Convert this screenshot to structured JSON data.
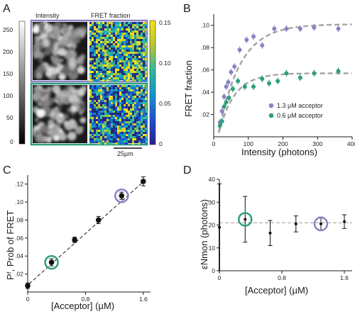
{
  "panels": {
    "A": {
      "letter": "A",
      "col_titles": [
        "Intensity",
        "FRET fraction"
      ],
      "gray_ticks": [
        "250",
        "200",
        "150",
        "100",
        "50",
        "0"
      ],
      "color_ticks": [
        "0.15",
        "0.10",
        "0.05",
        "0"
      ],
      "scalebar": "25µm",
      "frame_colors": {
        "top": "#8a83c4",
        "bottom": "#2f9e7e"
      }
    },
    "B": {
      "letter": "B"
    },
    "C": {
      "letter": "C"
    },
    "D": {
      "letter": "D"
    }
  },
  "chart_data": [
    {
      "panel": "B",
      "type": "scatter",
      "xlabel": "Intensity (photons)",
      "ylabel": "FRET fraction",
      "xlim": [
        0,
        400
      ],
      "ylim": [
        0,
        0.11
      ],
      "xticks": [
        "0",
        "100",
        "200",
        "300",
        "400"
      ],
      "yticks": [
        ".02",
        ".04",
        ".06",
        ".08",
        ".10"
      ],
      "legend_position": "bottom-right",
      "series": [
        {
          "name": "1.3 μM acceptor",
          "color": "#8a83c4",
          "x": [
            18,
            24,
            30,
            36,
            42,
            50,
            60,
            75,
            95,
            115,
            140,
            175,
            210,
            250,
            290,
            360
          ],
          "y": [
            0.013,
            0.023,
            0.036,
            0.045,
            0.049,
            0.058,
            0.063,
            0.078,
            0.087,
            0.09,
            0.082,
            0.097,
            0.097,
            0.097,
            0.098,
            0.097
          ],
          "fit": {
            "type": "saturation",
            "max": 0.101,
            "k": 0.016
          }
        },
        {
          "name": "0.6 μM acceptor",
          "color": "#2f9e7e",
          "x": [
            18,
            24,
            30,
            36,
            44,
            55,
            70,
            90,
            115,
            140,
            160,
            185,
            210,
            250,
            290,
            360
          ],
          "y": [
            0.01,
            0.014,
            0.027,
            0.031,
            0.035,
            0.043,
            0.05,
            0.045,
            0.045,
            0.052,
            0.048,
            0.05,
            0.057,
            0.053,
            0.057,
            0.059
          ],
          "fit": {
            "type": "saturation",
            "max": 0.057,
            "k": 0.022
          }
        }
      ]
    },
    {
      "panel": "C",
      "type": "scatter",
      "xlabel": "[Acceptor] (µM)",
      "ylabel": "Pᶠ, Prob of FRET",
      "xlim": [
        0,
        1.7
      ],
      "ylim": [
        0,
        0.13
      ],
      "xticks": [
        "0",
        "0.8",
        "1.6"
      ],
      "yticks": [
        ".02",
        ".04",
        ".06",
        ".08",
        ".10",
        ".12"
      ],
      "x": [
        0.0,
        0.33,
        0.65,
        0.98,
        1.3,
        1.6
      ],
      "y": [
        0.007,
        0.033,
        0.058,
        0.08,
        0.107,
        0.123
      ],
      "err": [
        0.003,
        0.004,
        0.003,
        0.004,
        0.004,
        0.005
      ],
      "highlighted": [
        1,
        4
      ]
    },
    {
      "panel": "D",
      "type": "scatter",
      "xlabel": "[Acceptor] (µM)",
      "ylabel": "εNmon (photons)",
      "xlim": [
        0,
        1.7
      ],
      "ylim": [
        0,
        40
      ],
      "xticks": [
        "0",
        "0.8",
        "1.6"
      ],
      "yticks": [
        "0",
        "10",
        "20",
        "30",
        "40"
      ],
      "x": [
        0.0,
        0.33,
        0.65,
        0.98,
        1.3,
        1.6
      ],
      "y": [
        19,
        22.5,
        16.5,
        20.5,
        20.5,
        21.5
      ],
      "err": [
        19,
        10,
        5.5,
        3.5,
        3,
        3
      ],
      "reference_line": 21,
      "highlighted": [
        1,
        4
      ]
    }
  ]
}
